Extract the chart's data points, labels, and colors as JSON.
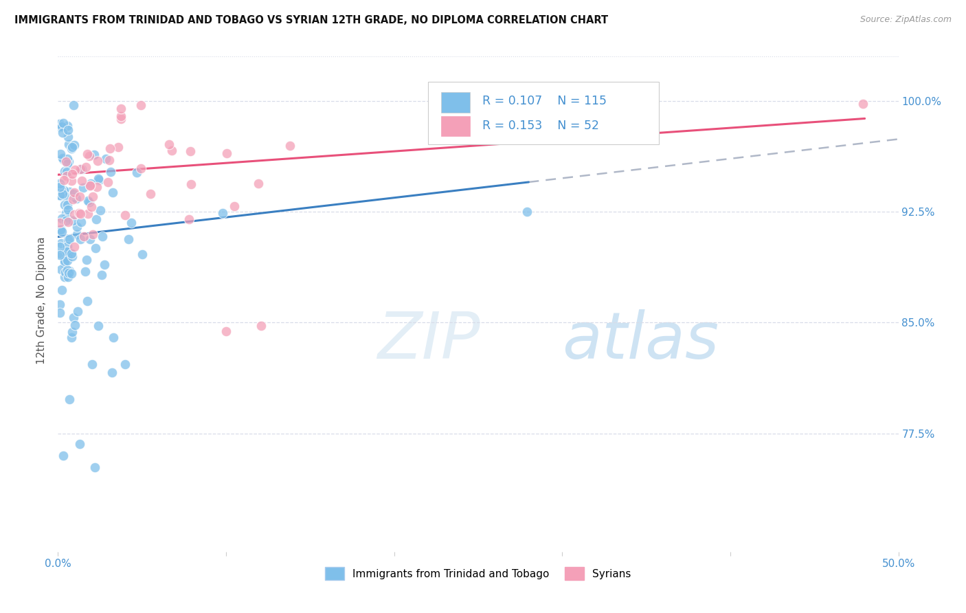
{
  "title": "IMMIGRANTS FROM TRINIDAD AND TOBAGO VS SYRIAN 12TH GRADE, NO DIPLOMA CORRELATION CHART",
  "source": "Source: ZipAtlas.com",
  "ylabel": "12th Grade, No Diploma",
  "yticks": [
    "100.0%",
    "92.5%",
    "85.0%",
    "77.5%"
  ],
  "ytick_vals": [
    1.0,
    0.925,
    0.85,
    0.775
  ],
  "xrange": [
    0.0,
    0.5
  ],
  "yrange": [
    0.695,
    1.035
  ],
  "color_blue": "#7fbfea",
  "color_pink": "#f4a0b8",
  "color_blue_line": "#3a7fc1",
  "color_pink_line": "#e8507a",
  "color_dashed": "#b0b8c8",
  "color_axis_label": "#4490d0",
  "background": "#ffffff",
  "legend_label_1": "Immigrants from Trinidad and Tobago",
  "legend_label_2": "Syrians",
  "grid_color": "#d8dce8",
  "tt_line_x0": 0.0,
  "tt_line_y0": 0.908,
  "tt_line_x1": 0.28,
  "tt_line_y1": 0.945,
  "sy_line_x0": 0.0,
  "sy_line_y0": 0.95,
  "sy_line_x1": 0.48,
  "sy_line_y1": 0.988
}
